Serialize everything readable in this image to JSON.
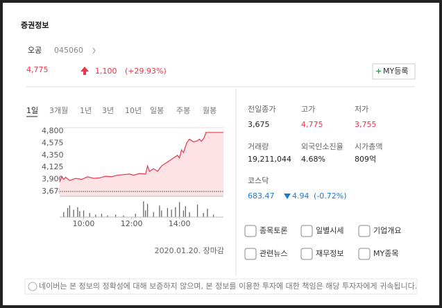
{
  "header": {
    "title": "증권정보"
  },
  "stock": {
    "name": "오공",
    "code": "045060",
    "price": "4,775",
    "change": "1,100",
    "change_rate": "(+29.93%)",
    "my_button": "MY등록"
  },
  "tabs": [
    "1일",
    "3개월",
    "1년",
    "3년",
    "10년",
    "일봉",
    "주봉",
    "월봉"
  ],
  "chart": {
    "type": "line",
    "x": [
      0,
      5,
      10,
      15,
      25,
      40,
      55,
      70,
      85,
      100,
      115,
      130,
      145,
      160,
      175,
      185,
      200,
      215,
      220,
      225,
      235,
      245,
      255,
      265,
      275,
      285,
      295,
      300,
      305,
      310,
      318,
      325,
      335,
      345,
      350,
      355,
      362,
      366,
      410
    ],
    "series": [
      {
        "color": "#e8364a",
        "values": [
          3850,
          3950,
          3900,
          3940,
          3880,
          3920,
          3900,
          3950,
          3920,
          3930,
          3960,
          3950,
          3980,
          3990,
          4000,
          3980,
          4010,
          4000,
          4150,
          4050,
          4100,
          4050,
          4150,
          4200,
          4250,
          4300,
          4350,
          4300,
          4450,
          4400,
          4580,
          4650,
          4600,
          4620,
          4650,
          4610,
          4680,
          4775,
          4775
        ]
      }
    ],
    "xlim": [
      0,
      410
    ],
    "xticks": [
      {
        "value": 60,
        "label": "10:00"
      },
      {
        "value": 180,
        "label": "12:00"
      },
      {
        "value": 300,
        "label": "14:00"
      }
    ],
    "ylim": [
      3585,
      4865
    ],
    "yticks": [
      {
        "value": 4800,
        "label": "4,800"
      },
      {
        "value": 4575,
        "label": "4,575"
      },
      {
        "value": 4350,
        "label": "4,350"
      },
      {
        "value": 4125,
        "label": "4,125"
      },
      {
        "value": 3900,
        "label": "3,900"
      },
      {
        "value": 3675,
        "label": "3,675"
      }
    ],
    "volume": {
      "x": [
        10,
        20,
        25,
        35,
        45,
        50,
        60,
        75,
        90,
        105,
        120,
        140,
        160,
        190,
        210,
        215,
        220,
        235,
        250,
        255,
        270,
        280,
        290,
        300,
        310,
        315,
        325,
        345,
        360,
        370,
        385
      ],
      "values": [
        30,
        55,
        70,
        45,
        60,
        35,
        40,
        25,
        15,
        20,
        10,
        15,
        10,
        20,
        95,
        40,
        80,
        30,
        70,
        40,
        55,
        45,
        60,
        90,
        40,
        65,
        30,
        75,
        25,
        50,
        15
      ],
      "ylim": [
        0,
        100
      ],
      "color": "#666"
    }
  },
  "timestamp": "2020.01.20. 장마감",
  "stats": [
    {
      "label": "전일종가",
      "value": "3,675"
    },
    {
      "label": "고가",
      "value": "4,775"
    },
    {
      "label": "저가",
      "value": "3,755"
    },
    {
      "label": "거래량",
      "value": "19,211,044"
    },
    {
      "label": "외국인소진율",
      "value": "4.68%"
    },
    {
      "label": "시가총액",
      "value": "809억"
    }
  ],
  "index": {
    "name": "코스닥",
    "value": "683.47",
    "change": "4.94",
    "change_rate": "(-0.72%)"
  },
  "links": [
    "종목토론",
    "일별시세",
    "기업개요",
    "관련뉴스",
    "재무정보",
    "MY종목"
  ],
  "footer": "네이버는 본 정보의 정확성에 대해 보증하지 않으며, 본 정보를 이용한 투자에 대한 책임은 해당 투자자에게 귀속됩니다."
}
